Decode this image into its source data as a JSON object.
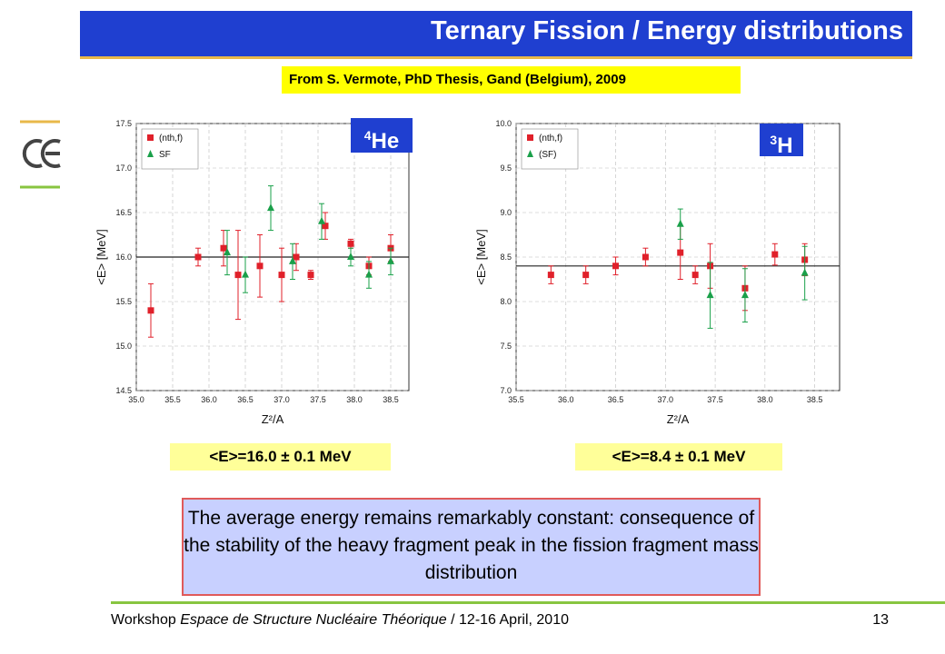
{
  "slide": {
    "title": "Ternary Fission / Energy distributions",
    "source": "From S. Vermote, PhD Thesis, Gand (Belgium), 2009",
    "conclusion": "The average energy remains remarkably constant: consequence of the stability of the heavy fragment peak in the fission fragment mass distribution",
    "footer_prefix": "Workshop ",
    "footer_italic": "Espace de Structure Nucléaire Théorique",
    "footer_suffix": " / 12-16 April, 2010",
    "page_number": "13"
  },
  "colors": {
    "title_bar": "#1f3fd0",
    "title_underline": "#e8b84a",
    "source_bg": "#ffff00",
    "mean_bg": "#ffff99",
    "conclusion_bg": "#c8d0ff",
    "conclusion_border": "#e05a5a",
    "footer_line": "#88c540",
    "nth_series": "#e0202a",
    "sf_series": "#1aa04a"
  },
  "chart_data": [
    {
      "type": "scatter",
      "particle_mass": "4",
      "particle_symbol": "He",
      "mean_label": "<E>=16.0 ± 0.1 MeV",
      "xlabel": "Z²/A",
      "ylabel": "<E> [MeV]",
      "xlim": [
        35.0,
        38.75
      ],
      "ylim": [
        14.5,
        17.5
      ],
      "xticks": [
        "35.0",
        "35.5",
        "36.0",
        "36.5",
        "37.0",
        "37.5",
        "38.0",
        "38.5"
      ],
      "yticks": [
        "14.5",
        "15.0",
        "15.5",
        "16.0",
        "16.5",
        "17.0",
        "17.5"
      ],
      "reference_line": 16.0,
      "legend_position": "top-left",
      "series": [
        {
          "name": "(nth,f)",
          "marker": "square",
          "points": [
            {
              "x": 35.2,
              "y": 15.4,
              "err": 0.3
            },
            {
              "x": 35.85,
              "y": 16.0,
              "err": 0.1
            },
            {
              "x": 36.2,
              "y": 16.1,
              "err": 0.2
            },
            {
              "x": 36.4,
              "y": 15.8,
              "err": 0.5
            },
            {
              "x": 36.7,
              "y": 15.9,
              "err": 0.35
            },
            {
              "x": 37.0,
              "y": 15.8,
              "err": 0.3
            },
            {
              "x": 37.2,
              "y": 16.0,
              "err": 0.15
            },
            {
              "x": 37.4,
              "y": 15.8,
              "err": 0.05
            },
            {
              "x": 37.6,
              "y": 16.35,
              "err": 0.15
            },
            {
              "x": 37.95,
              "y": 16.15,
              "err": 0.05
            },
            {
              "x": 38.2,
              "y": 15.9,
              "err": 0.1
            },
            {
              "x": 38.5,
              "y": 16.1,
              "err": 0.15
            }
          ]
        },
        {
          "name": "SF",
          "marker": "triangle",
          "points": [
            {
              "x": 36.25,
              "y": 16.05,
              "err": 0.25
            },
            {
              "x": 36.5,
              "y": 15.8,
              "err": 0.2
            },
            {
              "x": 36.85,
              "y": 16.55,
              "err": 0.25
            },
            {
              "x": 37.15,
              "y": 15.95,
              "err": 0.2
            },
            {
              "x": 37.55,
              "y": 16.4,
              "err": 0.2
            },
            {
              "x": 37.95,
              "y": 16.0,
              "err": 0.1
            },
            {
              "x": 38.2,
              "y": 15.8,
              "err": 0.15
            },
            {
              "x": 38.5,
              "y": 15.95,
              "err": 0.15
            }
          ]
        }
      ]
    },
    {
      "type": "scatter",
      "particle_mass": "3",
      "particle_symbol": "H",
      "mean_label": "<E>=8.4 ± 0.1 MeV",
      "xlabel": "Z²/A",
      "ylabel": "<E> [MeV]",
      "xlim": [
        35.5,
        38.75
      ],
      "ylim": [
        7.0,
        10.0
      ],
      "xticks": [
        "35.5",
        "36.0",
        "36.5",
        "37.0",
        "37.5",
        "38.0",
        "38.5"
      ],
      "yticks": [
        "7.0",
        "7.5",
        "8.0",
        "8.5",
        "9.0",
        "9.5",
        "10.0"
      ],
      "reference_line": 8.4,
      "legend_position": "top-left",
      "series": [
        {
          "name": "(nth,f)",
          "marker": "square",
          "points": [
            {
              "x": 35.85,
              "y": 8.3,
              "err": 0.1
            },
            {
              "x": 36.2,
              "y": 8.3,
              "err": 0.1
            },
            {
              "x": 36.5,
              "y": 8.4,
              "err": 0.1
            },
            {
              "x": 36.8,
              "y": 8.5,
              "err": 0.1
            },
            {
              "x": 37.15,
              "y": 8.55,
              "err": 0.3
            },
            {
              "x": 37.3,
              "y": 8.3,
              "err": 0.1
            },
            {
              "x": 37.45,
              "y": 8.4,
              "err": 0.25
            },
            {
              "x": 37.8,
              "y": 8.15,
              "err": 0.25
            },
            {
              "x": 38.1,
              "y": 8.53,
              "err": 0.12
            },
            {
              "x": 38.4,
              "y": 8.47,
              "err": 0.18
            }
          ]
        },
        {
          "name": "(SF)",
          "marker": "triangle",
          "points": [
            {
              "x": 37.15,
              "y": 8.87,
              "err": 0.17
            },
            {
              "x": 37.45,
              "y": 8.07,
              "err": 0.37
            },
            {
              "x": 37.8,
              "y": 8.07,
              "err": 0.3
            },
            {
              "x": 38.4,
              "y": 8.32,
              "err": 0.3
            }
          ]
        }
      ]
    }
  ]
}
